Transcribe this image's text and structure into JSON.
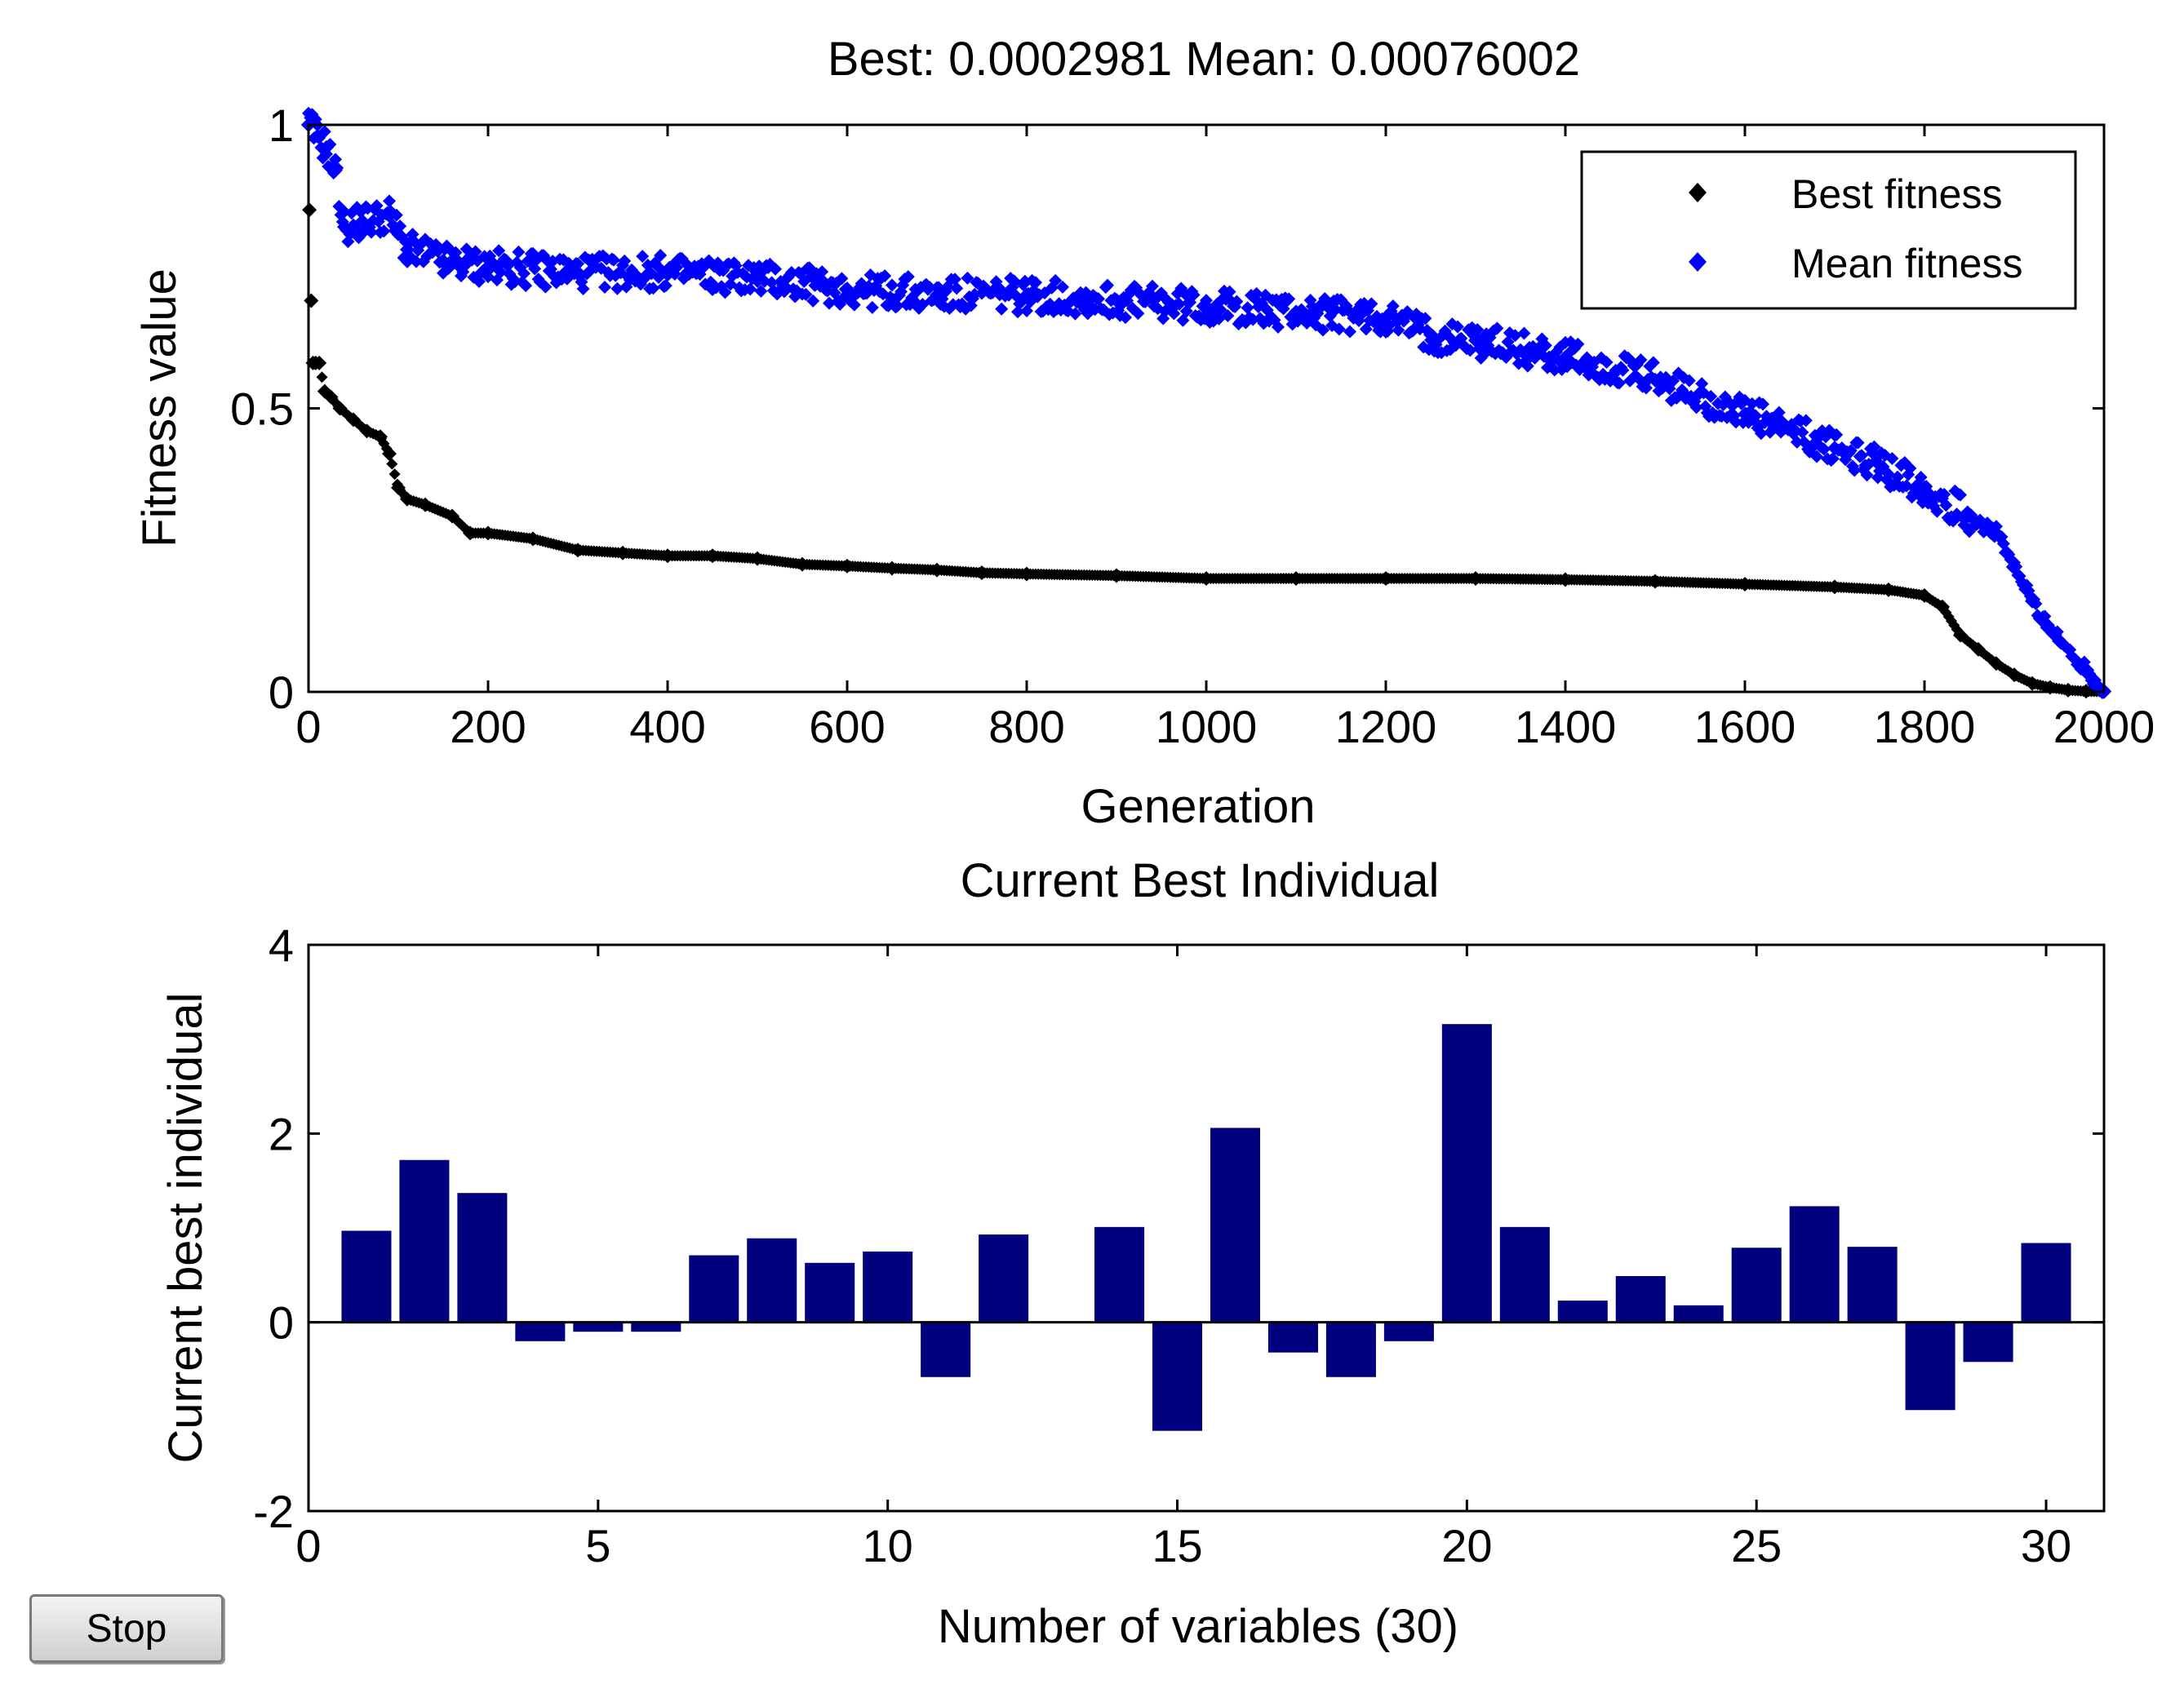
{
  "chart_data": [
    {
      "type": "scatter",
      "title": "Best: 0.0002981 Mean: 0.00076002",
      "xlabel": "Generation",
      "ylabel": "Fitness value",
      "xlim": [
        0,
        2000
      ],
      "ylim": [
        0,
        1
      ],
      "xticks": [
        "0",
        "200",
        "400",
        "600",
        "800",
        "1000",
        "1200",
        "1400",
        "1600",
        "1800",
        "2000"
      ],
      "xtick_values": [
        0,
        200,
        400,
        600,
        800,
        1000,
        1200,
        1400,
        1600,
        1800,
        2000
      ],
      "yticks": [
        "0",
        "0.5",
        "1"
      ],
      "ytick_values": [
        0,
        0.5,
        1
      ],
      "legend": [
        "Best fitness",
        "Mean fitness"
      ],
      "legend_position": "top-right",
      "series": [
        {
          "name": "Best fitness",
          "color": "#000000",
          "marker": "diamond",
          "x": [
            0,
            1,
            3,
            5,
            8,
            12,
            18,
            25,
            35,
            50,
            65,
            80,
            90,
            100,
            110,
            130,
            160,
            180,
            200,
            250,
            300,
            350,
            400,
            450,
            500,
            550,
            600,
            650,
            700,
            750,
            800,
            900,
            1000,
            1100,
            1200,
            1300,
            1400,
            1500,
            1600,
            1700,
            1760,
            1800,
            1820,
            1840,
            1860,
            1880,
            1900,
            1920,
            1940,
            1960,
            1980,
            2000
          ],
          "y": [
            1,
            0.85,
            0.69,
            0.58,
            0.58,
            0.58,
            0.53,
            0.52,
            0.5,
            0.48,
            0.46,
            0.45,
            0.42,
            0.36,
            0.34,
            0.33,
            0.31,
            0.28,
            0.28,
            0.27,
            0.25,
            0.245,
            0.24,
            0.24,
            0.235,
            0.225,
            0.222,
            0.218,
            0.215,
            0.21,
            0.208,
            0.205,
            0.2,
            0.2,
            0.2,
            0.2,
            0.198,
            0.195,
            0.19,
            0.185,
            0.18,
            0.17,
            0.15,
            0.1,
            0.075,
            0.05,
            0.03,
            0.015,
            0.008,
            0.003,
            0.001,
            0.0003
          ]
        },
        {
          "name": "Mean fitness",
          "color": "#0000ff",
          "marker": "diamond",
          "x": [
            0,
            10,
            20,
            30,
            40,
            60,
            90,
            110,
            150,
            200,
            300,
            400,
            500,
            600,
            700,
            800,
            900,
            1000,
            1100,
            1200,
            1250,
            1300,
            1400,
            1500,
            1600,
            1700,
            1750,
            1800,
            1850,
            1880,
            1900,
            1920,
            1950,
            1980,
            2000
          ],
          "y": [
            1,
            0.98,
            0.96,
            0.92,
            0.82,
            0.83,
            0.84,
            0.78,
            0.76,
            0.75,
            0.74,
            0.74,
            0.73,
            0.71,
            0.7,
            0.7,
            0.69,
            0.68,
            0.67,
            0.66,
            0.63,
            0.62,
            0.59,
            0.55,
            0.49,
            0.43,
            0.4,
            0.36,
            0.31,
            0.28,
            0.22,
            0.16,
            0.09,
            0.04,
            0.001
          ]
        }
      ]
    },
    {
      "type": "bar",
      "title": "Current Best Individual",
      "xlabel": "Number of variables (30)",
      "ylabel": "Current best individual",
      "xlim": [
        0,
        31
      ],
      "ylim": [
        -2,
        4
      ],
      "xticks": [
        "0",
        "5",
        "10",
        "15",
        "20",
        "25",
        "30"
      ],
      "xtick_values": [
        0,
        5,
        10,
        15,
        20,
        25,
        30
      ],
      "yticks": [
        "-2",
        "0",
        "2",
        "4"
      ],
      "ytick_values": [
        -2,
        0,
        2,
        4
      ],
      "color": "#00007f",
      "categories": [
        1,
        2,
        3,
        4,
        5,
        6,
        7,
        8,
        9,
        10,
        11,
        12,
        13,
        14,
        15,
        16,
        17,
        18,
        19,
        20,
        21,
        22,
        23,
        24,
        25,
        26,
        27,
        28,
        29,
        30
      ],
      "values": [
        0.97,
        1.72,
        1.37,
        -0.2,
        -0.1,
        -0.1,
        0.71,
        0.89,
        0.63,
        0.75,
        -0.58,
        0.93,
        0,
        1.01,
        -1.15,
        2.06,
        -0.32,
        -0.58,
        -0.2,
        3.16,
        1.01,
        0.23,
        0.49,
        0.18,
        0.79,
        1.23,
        0.8,
        -0.93,
        -0.42,
        0.84
      ]
    }
  ],
  "controls": {
    "stop_label": "Stop"
  }
}
